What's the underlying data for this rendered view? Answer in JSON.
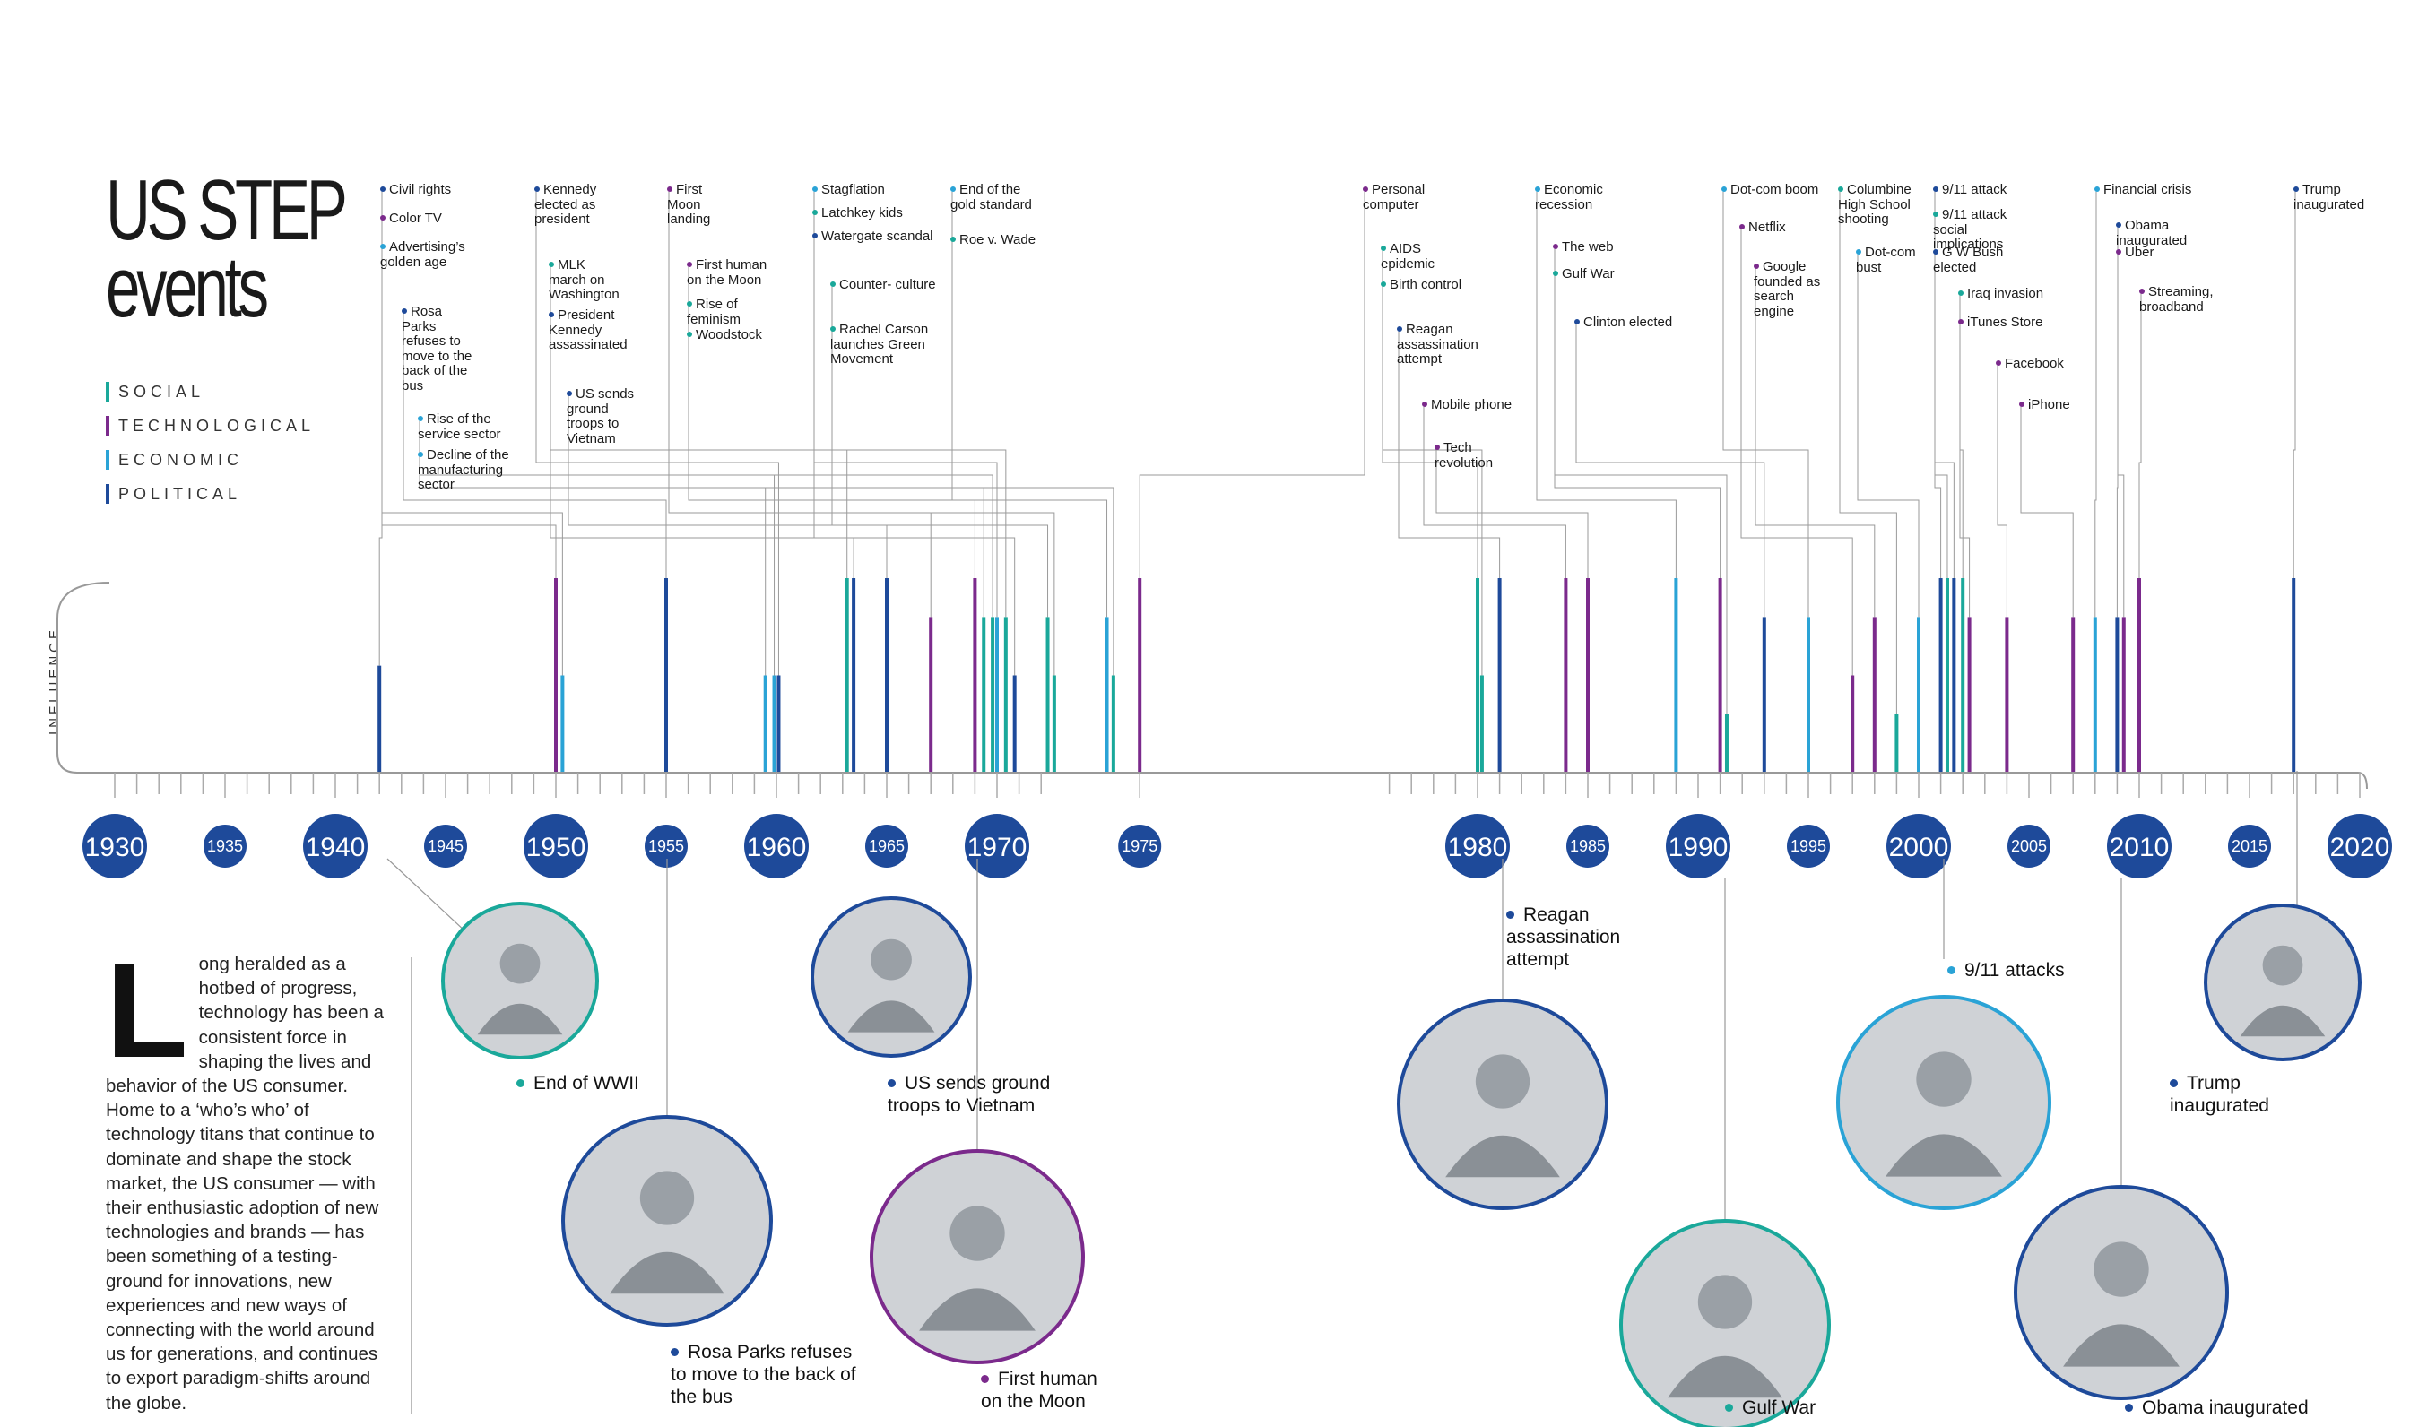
{
  "title": {
    "line1": "US STEP",
    "line2": "events"
  },
  "legend": [
    {
      "label": "SOCIAL",
      "color": "#1aa89a"
    },
    {
      "label": "TECHNOLOGICAL",
      "color": "#7b2a8c"
    },
    {
      "label": "ECONOMIC",
      "color": "#2aa3d6"
    },
    {
      "label": "POLITICAL",
      "color": "#1e4a9a"
    }
  ],
  "influence_label": "INFLUENCE",
  "intro": {
    "dropcap": "L",
    "text": "ong heralded as a hotbed of progress, technology has been a consistent force in shaping the lives and behavior of the US consumer. Home to a ‘who’s who’ of technology titans that continue to dominate and shape the stock market, the US consumer — with their enthusiastic adoption of new technologies and brands — has been something of a testing-ground for innovations, new experiences and new ways of connecting with the world around us for generations, and continues to export paradigm-shifts around the globe."
  },
  "colors": {
    "social": "#1aa89a",
    "tech": "#7b2a8c",
    "econ": "#2aa3d6",
    "pol": "#1e4a9a",
    "year_circle": "#1e4a9a",
    "axis": "#999999"
  },
  "years": [
    "1930",
    "1935",
    "1940",
    "1945",
    "1950",
    "1955",
    "1960",
    "1965",
    "1970",
    "1975",
    "1980",
    "1985",
    "1990",
    "1995",
    "2000",
    "2005",
    "2010",
    "2015",
    "2020"
  ],
  "events": [
    {
      "label": "Civil rights",
      "cat": "pol",
      "year": 1942,
      "influence": 0.55
    },
    {
      "label": "Color TV",
      "cat": "tech",
      "year": 1950,
      "influence": 1.0
    },
    {
      "label": "Advertising’s golden age",
      "cat": "econ",
      "year": 1950.3,
      "influence": 0.5
    },
    {
      "label": "Rosa Parks refuses to move to the back of the bus",
      "cat": "pol",
      "year": 1955,
      "influence": 1.0
    },
    {
      "label": "Rise of the service sector",
      "cat": "econ",
      "year": 1959.5,
      "influence": 0.5
    },
    {
      "label": "Decline of the manufacturing sector",
      "cat": "econ",
      "year": 1959.9,
      "influence": 0.5
    },
    {
      "label": "Kennedy elected as president",
      "cat": "pol",
      "year": 1960.1,
      "influence": 0.5
    },
    {
      "label": "MLK march on Washington",
      "cat": "social",
      "year": 1963.2,
      "influence": 1.0
    },
    {
      "label": "President Kennedy assassinated",
      "cat": "pol",
      "year": 1963.5,
      "influence": 1.0
    },
    {
      "label": "US sends ground troops to Vietnam",
      "cat": "pol",
      "year": 1965,
      "influence": 1.0
    },
    {
      "label": "First Moon landing",
      "cat": "tech",
      "year": 1967,
      "influence": 0.8
    },
    {
      "label": "First human on the Moon",
      "cat": "tech",
      "year": 1969,
      "influence": 1.0
    },
    {
      "label": "Rise of feminism",
      "cat": "social",
      "year": 1969.4,
      "influence": 0.8
    },
    {
      "label": "Woodstock",
      "cat": "social",
      "year": 1969.8,
      "influence": 0.8
    },
    {
      "label": "Stagflation",
      "cat": "econ",
      "year": 1970,
      "influence": 0.8
    },
    {
      "label": "Latchkey kids",
      "cat": "social",
      "year": 1970.4,
      "influence": 0.8
    },
    {
      "label": "Watergate scandal",
      "cat": "pol",
      "year": 1970.8,
      "influence": 0.5
    },
    {
      "label": "Counter- culture",
      "cat": "social",
      "year": 1972.2,
      "influence": 0.8
    },
    {
      "label": "Rachel Carson launches Green Movement",
      "cat": "social",
      "year": 1972.4,
      "influence": 0.5
    },
    {
      "label": "End of the gold standard",
      "cat": "econ",
      "year": 1974,
      "influence": 0.8
    },
    {
      "label": "Roe v. Wade",
      "cat": "social",
      "year": 1974.2,
      "influence": 0.5
    },
    {
      "label": "Personal computer",
      "cat": "tech",
      "year": 1975,
      "influence": 1.0
    },
    {
      "label": "AIDS epidemic",
      "cat": "social",
      "year": 1980,
      "influence": 1.0
    },
    {
      "label": "Birth control",
      "cat": "social",
      "year": 1980.2,
      "influence": 0.5
    },
    {
      "label": "Reagan assassination attempt",
      "cat": "pol",
      "year": 1981,
      "influence": 1.0
    },
    {
      "label": "Mobile phone",
      "cat": "tech",
      "year": 1984,
      "influence": 1.0
    },
    {
      "label": "Tech revolution",
      "cat": "tech",
      "year": 1985,
      "influence": 1.0
    },
    {
      "label": "Economic recession",
      "cat": "econ",
      "year": 1989,
      "influence": 1.0
    },
    {
      "label": "The web",
      "cat": "tech",
      "year": 1991,
      "influence": 1.0
    },
    {
      "label": "Gulf War",
      "cat": "social",
      "year": 1991.3,
      "influence": 0.3
    },
    {
      "label": "Clinton elected",
      "cat": "pol",
      "year": 1993,
      "influence": 0.8
    },
    {
      "label": "Dot-com boom",
      "cat": "econ",
      "year": 1995,
      "influence": 0.8
    },
    {
      "label": "Netflix",
      "cat": "tech",
      "year": 1997,
      "influence": 0.5
    },
    {
      "label": "Google founded as search engine",
      "cat": "tech",
      "year": 1998,
      "influence": 0.8
    },
    {
      "label": "Columbine High School shooting",
      "cat": "social",
      "year": 1999,
      "influence": 0.3
    },
    {
      "label": "Dot-com bust",
      "cat": "econ",
      "year": 2000,
      "influence": 0.8
    },
    {
      "label": "9/11 attack",
      "cat": "pol",
      "year": 2001,
      "influence": 1.0
    },
    {
      "label": "9/11 attack social implications",
      "cat": "social",
      "year": 2001.3,
      "influence": 1.0
    },
    {
      "label": "G W Bush elected",
      "cat": "pol",
      "year": 2001.6,
      "influence": 1.0
    },
    {
      "label": "Iraq invasion",
      "cat": "social",
      "year": 2002,
      "influence": 1.0
    },
    {
      "label": "iTunes Store",
      "cat": "tech",
      "year": 2002.3,
      "influence": 0.8
    },
    {
      "label": "Facebook",
      "cat": "tech",
      "year": 2004,
      "influence": 0.8
    },
    {
      "label": "iPhone",
      "cat": "tech",
      "year": 2007,
      "influence": 0.8
    },
    {
      "label": "Financial crisis",
      "cat": "econ",
      "year": 2008,
      "influence": 0.8
    },
    {
      "label": "Obama inaugurated",
      "cat": "pol",
      "year": 2009,
      "influence": 0.8
    },
    {
      "label": "Uber",
      "cat": "tech",
      "year": 2009.3,
      "influence": 0.8
    },
    {
      "label": "Streaming, broadband",
      "cat": "tech",
      "year": 2010,
      "influence": 1.0
    },
    {
      "label": "Trump inaugurated",
      "cat": "pol",
      "year": 2017,
      "influence": 1.0
    }
  ],
  "featured": [
    {
      "label": "End of WWII",
      "cat": "social",
      "year": 1945
    },
    {
      "label": "Rosa Parks refuses to move to the back of the bus",
      "cat": "pol",
      "year": 1955
    },
    {
      "label": "US sends ground troops to Vietnam",
      "cat": "pol",
      "year": 1965
    },
    {
      "label": "First human on the Moon",
      "cat": "tech",
      "year": 1969
    },
    {
      "label": "Reagan assassination attempt",
      "cat": "pol",
      "year": 1981
    },
    {
      "label": "Gulf War",
      "cat": "social",
      "year": 1991
    },
    {
      "label": "9/11 attacks",
      "cat": "econ",
      "year": 2001
    },
    {
      "label": "Obama inaugurated",
      "cat": "pol",
      "year": 2009
    },
    {
      "label": "Trump inaugurated",
      "cat": "pol",
      "year": 2017
    }
  ]
}
